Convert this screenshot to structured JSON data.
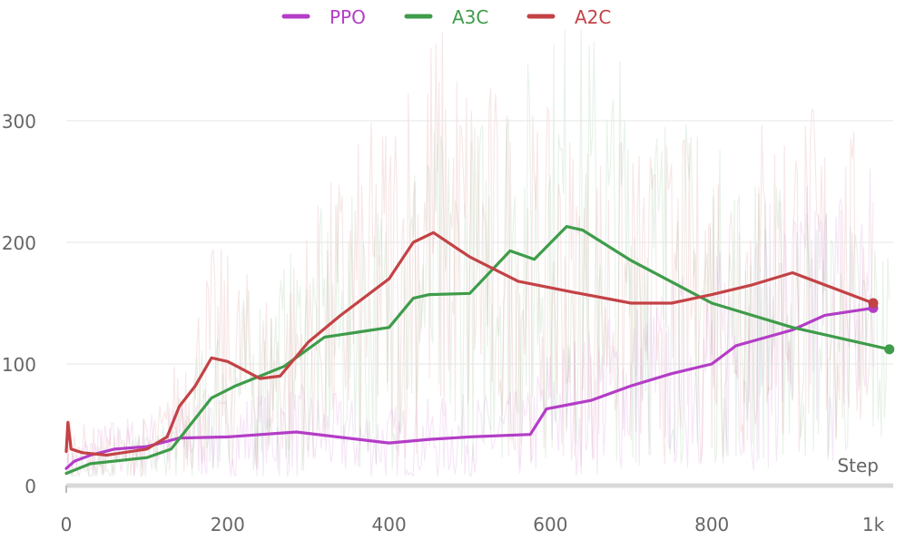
{
  "chart_data": {
    "type": "line",
    "title": "",
    "xlabel": "Step",
    "ylabel": "",
    "xlim": [
      0,
      1020
    ],
    "ylim": [
      0,
      375
    ],
    "x_ticks": [
      0,
      200,
      400,
      600,
      800,
      1000
    ],
    "x_tick_labels": [
      "0",
      "200",
      "400",
      "600",
      "800",
      "1k"
    ],
    "y_ticks": [
      0,
      100,
      200,
      300
    ],
    "y_tick_labels": [
      "0",
      "100",
      "200",
      "300"
    ],
    "grid": true,
    "legend": "top",
    "series": [
      {
        "name": "PPO",
        "color": "#b33dc6",
        "x": [
          0,
          10,
          30,
          60,
          100,
          140,
          200,
          285,
          400,
          450,
          500,
          575,
          595,
          650,
          700,
          750,
          800,
          830,
          900,
          940,
          1000
        ],
        "y": [
          14,
          20,
          25,
          30,
          32,
          39,
          40,
          44,
          35,
          38,
          40,
          42,
          63,
          70,
          82,
          92,
          100,
          115,
          128,
          140,
          146
        ]
      },
      {
        "name": "A3C",
        "color": "#3e9c4a",
        "x": [
          0,
          30,
          100,
          130,
          180,
          210,
          270,
          320,
          350,
          400,
          430,
          450,
          500,
          550,
          580,
          620,
          640,
          700,
          800,
          900,
          1020
        ],
        "y": [
          10,
          18,
          23,
          30,
          72,
          82,
          98,
          122,
          125,
          130,
          154,
          157,
          158,
          193,
          186,
          213,
          210,
          185,
          150,
          130,
          112
        ]
      },
      {
        "name": "A2C",
        "color": "#c34245",
        "x": [
          0,
          2,
          6,
          20,
          50,
          100,
          125,
          140,
          160,
          180,
          200,
          240,
          265,
          300,
          340,
          400,
          430,
          455,
          500,
          560,
          620,
          700,
          750,
          800,
          850,
          900,
          1000
        ],
        "y": [
          28,
          52,
          30,
          27,
          25,
          30,
          40,
          65,
          82,
          105,
          102,
          88,
          90,
          118,
          140,
          170,
          200,
          208,
          188,
          168,
          160,
          150,
          150,
          157,
          165,
          175,
          150
        ]
      }
    ]
  }
}
